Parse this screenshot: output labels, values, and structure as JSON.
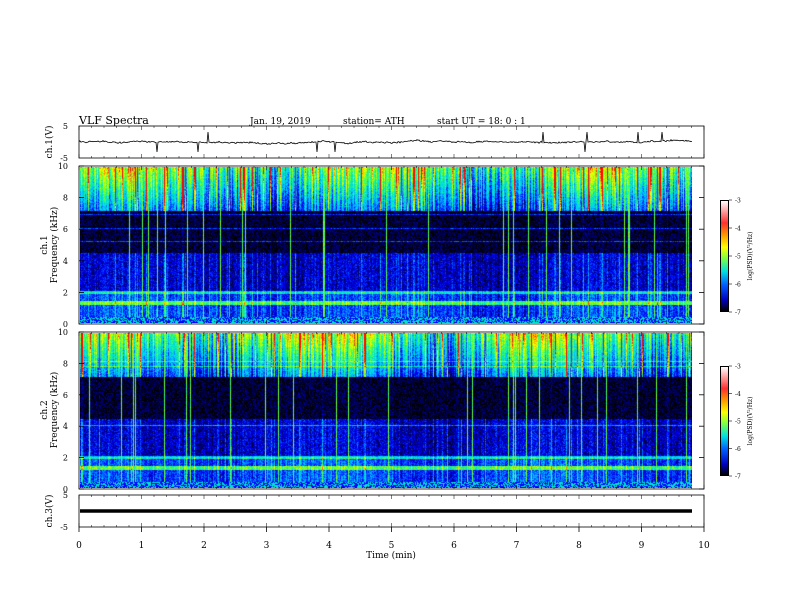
{
  "header": {
    "title": "VLF  Spectra",
    "date": "Jan.  19,  2019",
    "station": "station= ATH",
    "start": "start  UT  =    18: 0  : 1"
  },
  "colors": {
    "background": "#000033",
    "colormap": [
      "#000040",
      "#00008f",
      "#0000ff",
      "#0050ff",
      "#00a0ff",
      "#00e6e6",
      "#40ff80",
      "#a0ff00",
      "#ffff00",
      "#ff8000",
      "#ff0000",
      "#ffffff"
    ]
  },
  "chart_data": [
    {
      "type": "line",
      "ylabel": "ch.1(V)",
      "ylim": [
        -5,
        5
      ],
      "yticks": [
        "5",
        "-5"
      ],
      "xlim": [
        0,
        10
      ],
      "baseline": 0,
      "description_values": {
        "mean": 0,
        "spread": 0.6
      }
    },
    {
      "type": "heatmap",
      "ylabel": "ch.1\nFrequency  (kHz)",
      "ylim": [
        0,
        10
      ],
      "yticks": [
        "0",
        "2",
        "4",
        "6",
        "8",
        "10"
      ],
      "xlim": [
        0,
        10
      ],
      "colorbar": {
        "label": "log(PSD)(V²/Hz)",
        "range": [
          -7,
          -3
        ],
        "ticks": [
          "-3",
          "-4",
          "-5",
          "-6",
          "-7"
        ]
      }
    },
    {
      "type": "heatmap",
      "ylabel": "ch.2\nFrequency  (kHz)",
      "ylim": [
        0,
        10
      ],
      "yticks": [
        "0",
        "2",
        "4",
        "6",
        "8",
        "10"
      ],
      "xlim": [
        0,
        10
      ],
      "colorbar": {
        "label": "log(PSD)(V²/Hz)",
        "range": [
          -7,
          -3
        ],
        "ticks": [
          "-3",
          "-4",
          "-5",
          "-6",
          "-7"
        ]
      }
    },
    {
      "type": "line",
      "ylabel": "ch.3(V)",
      "ylim": [
        -5,
        5
      ],
      "yticks": [
        "5",
        "-5"
      ],
      "xlim": [
        0,
        10
      ],
      "baseline": 0,
      "xlabel": "Time  (min)",
      "xticks": [
        "0",
        "1",
        "2",
        "3",
        "4",
        "5",
        "6",
        "7",
        "8",
        "9",
        "10"
      ]
    }
  ]
}
